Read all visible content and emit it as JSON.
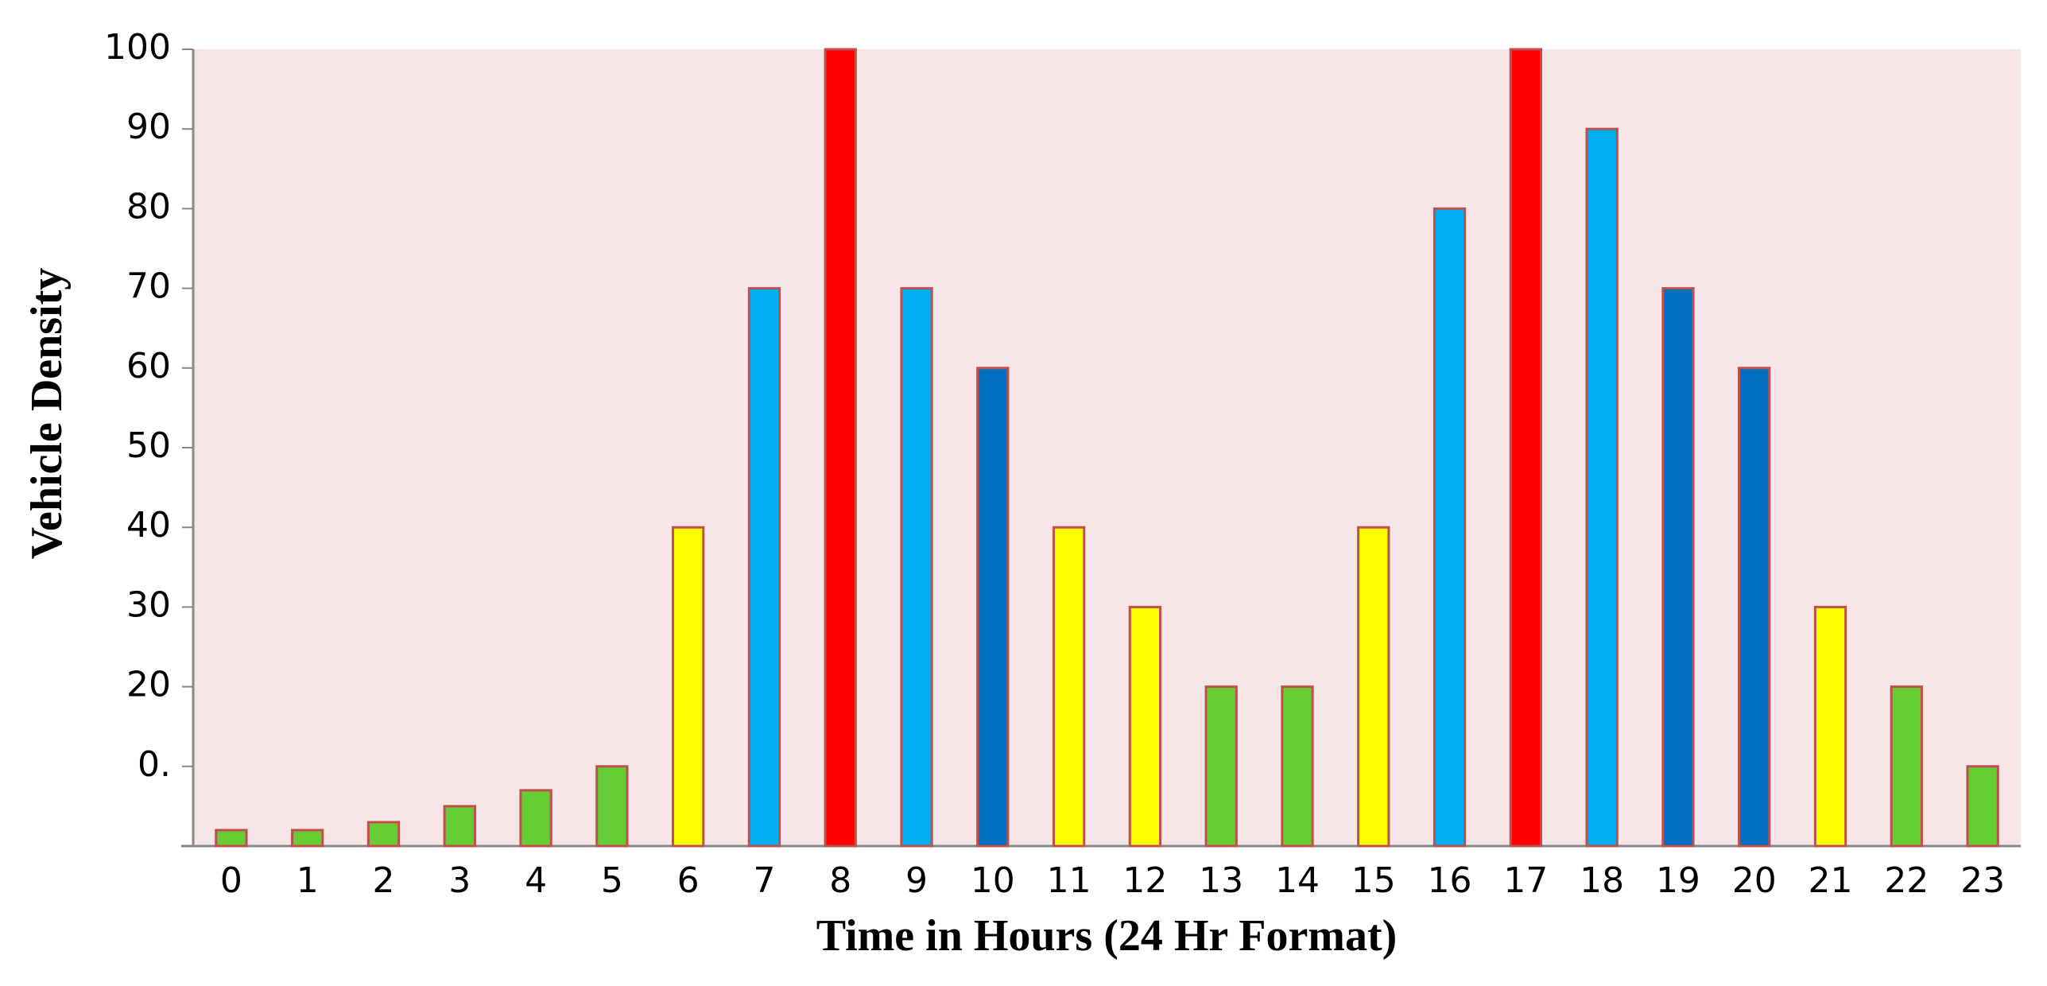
{
  "chart_data": {
    "type": "bar",
    "x_label": "Time in Hours (24 Hr Format)",
    "y_label": "Vehicle Density",
    "categories": [
      "0",
      "1",
      "2",
      "3",
      "4",
      "5",
      "6",
      "7",
      "8",
      "9",
      "10",
      "11",
      "12",
      "13",
      "14",
      "15",
      "16",
      "17",
      "18",
      "19",
      "20",
      "21",
      "22",
      "23"
    ],
    "values": [
      2,
      2,
      3,
      5,
      7,
      10,
      40,
      70,
      100,
      70,
      60,
      40,
      30,
      20,
      20,
      40,
      80,
      100,
      90,
      70,
      60,
      30,
      20,
      10
    ],
    "colors": [
      "#66cc33",
      "#66cc33",
      "#66cc33",
      "#66cc33",
      "#66cc33",
      "#66cc33",
      "#ffff00",
      "#00b0f0",
      "#ff0000",
      "#00b0f0",
      "#0070c0",
      "#ffff00",
      "#ffff00",
      "#66cc33",
      "#66cc33",
      "#ffff00",
      "#00b0f0",
      "#ff0000",
      "#00b0f0",
      "#0070c0",
      "#0070c0",
      "#ffff00",
      "#66cc33",
      "#66cc33"
    ],
    "ylim": [
      0,
      100
    ],
    "yticks": [
      {
        "value": 10,
        "label": "0."
      },
      20,
      30,
      40,
      50,
      60,
      70,
      80,
      90,
      100
    ],
    "grid": false
  }
}
